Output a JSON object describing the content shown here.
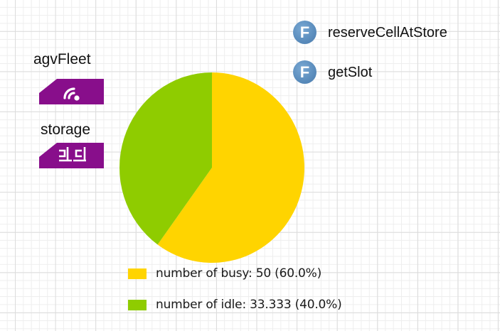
{
  "agents": [
    {
      "name": "agvFleet",
      "icon": "wifi-signal-icon",
      "color": "#880e8b"
    },
    {
      "name": "storage",
      "icon": "storage-rack-icon",
      "color": "#880e8b"
    }
  ],
  "functions": [
    {
      "badge": "F",
      "name": "reserveCellAtStore"
    },
    {
      "badge": "F",
      "name": "getSlot"
    }
  ],
  "chart": {
    "legend": [
      {
        "label": "number of busy: 50 (60.0%)",
        "color": "#ffd400"
      },
      {
        "label": "number of idle: 33.333 (40.0%)",
        "color": "#8fcc00"
      }
    ]
  },
  "chart_data": {
    "type": "pie",
    "title": "",
    "categories": [
      "number of busy",
      "number of idle"
    ],
    "values": [
      50,
      33.333
    ],
    "percentages": [
      60.0,
      40.0
    ],
    "colors": [
      "#ffd400",
      "#8fcc00"
    ],
    "legend_position": "bottom",
    "start_angle_deg": 90,
    "direction": "clockwise"
  }
}
